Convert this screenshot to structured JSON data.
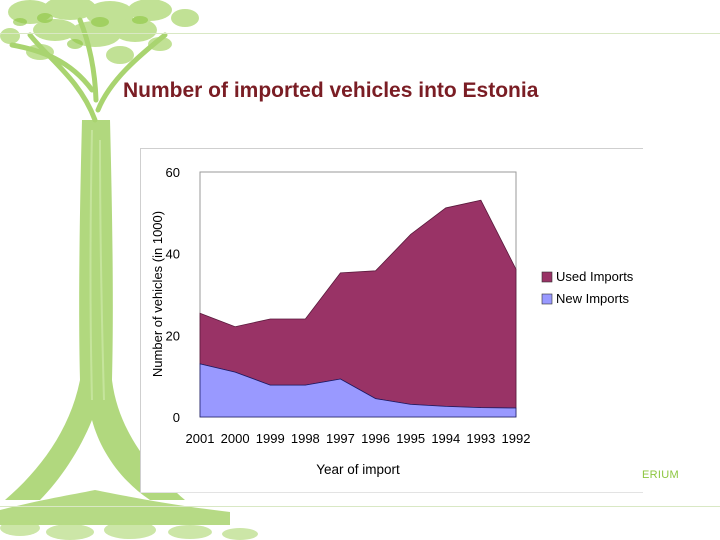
{
  "slide": {
    "title": "Number of imported vehicles into Estonia",
    "footer_logo_text": "ERIUM",
    "theme_colors": {
      "tree": "#8cc63f",
      "title": "#7a1d24"
    }
  },
  "chart_data": {
    "type": "area",
    "stacked": true,
    "title": "",
    "xlabel": "Year of import",
    "ylabel": "Number of vehicles (in 1000)",
    "x": [
      "2001",
      "2000",
      "1999",
      "1998",
      "1997",
      "1996",
      "1995",
      "1994",
      "1993",
      "1992"
    ],
    "ylim": [
      0,
      60
    ],
    "yticks": [
      0,
      20,
      40,
      60
    ],
    "legend_position": "right",
    "series": [
      {
        "name": "New Imports",
        "color": "#9999ff",
        "values": [
          13,
          11,
          7.8,
          7.8,
          9.3,
          4.5,
          3.1,
          2.6,
          2.3,
          2.2
        ]
      },
      {
        "name": "Used Imports",
        "color": "#993366",
        "values": [
          12.4,
          11.1,
          16.2,
          16.2,
          26.0,
          31.3,
          41.6,
          48.6,
          50.8,
          34.0
        ]
      }
    ]
  }
}
